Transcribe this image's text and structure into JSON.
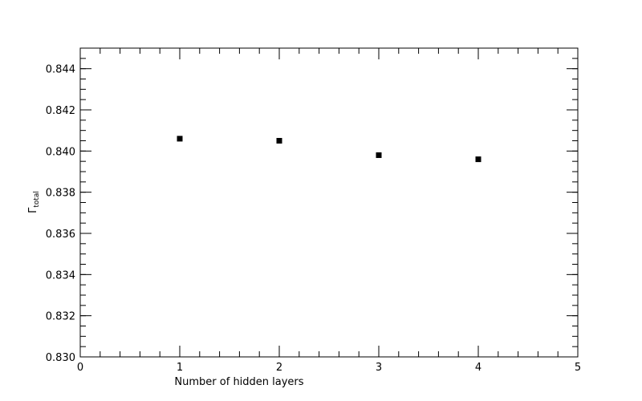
{
  "chart_data": {
    "type": "scatter",
    "title": "",
    "xlabel": "Number of hidden layers",
    "ylabel": {
      "main": "Γ",
      "sub": "total"
    },
    "xlim": [
      0,
      5
    ],
    "ylim": [
      0.83,
      0.845
    ],
    "x_ticks": [
      0,
      1,
      2,
      3,
      4,
      5
    ],
    "x_tick_labels": [
      "0",
      "1",
      "2",
      "3",
      "4",
      "5"
    ],
    "y_ticks": [
      0.83,
      0.832,
      0.834,
      0.836,
      0.838,
      0.84,
      0.842,
      0.844
    ],
    "y_tick_labels": [
      "0.830",
      "0.832",
      "0.834",
      "0.836",
      "0.838",
      "0.840",
      "0.842",
      "0.844"
    ],
    "grid": false,
    "marker": "square",
    "marker_color": "#000000",
    "series": [
      {
        "x": [
          1,
          2,
          3,
          4
        ],
        "y": [
          0.8406,
          0.8405,
          0.8398,
          0.8396
        ]
      }
    ]
  }
}
